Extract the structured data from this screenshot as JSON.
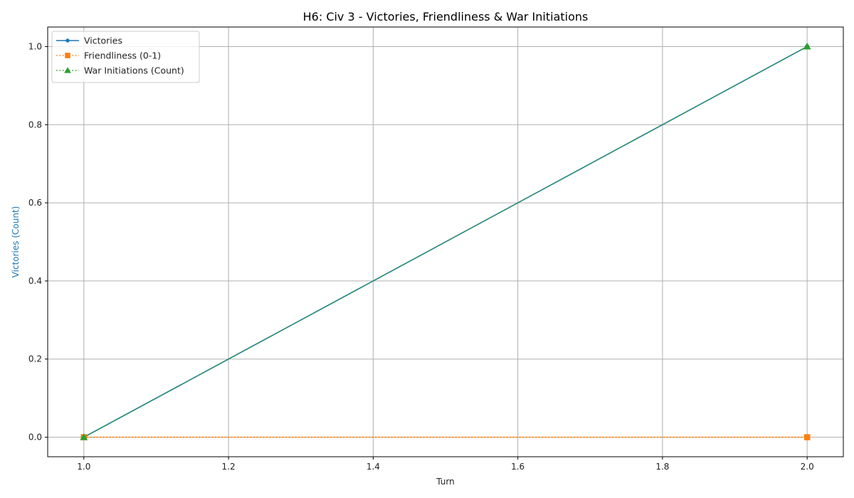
{
  "chart_data": {
    "type": "line",
    "title": "H6: Civ 3 - Victories, Friendliness & War Initiations",
    "xlabel": "Turn",
    "ylabel": "Victories (Count)",
    "xlim": [
      0.95,
      2.05
    ],
    "ylim": [
      -0.05,
      1.05
    ],
    "x_ticks": [
      "1.0",
      "1.2",
      "1.4",
      "1.6",
      "1.8",
      "2.0"
    ],
    "y_ticks": [
      "0.0",
      "0.2",
      "0.4",
      "0.6",
      "0.8",
      "1.0"
    ],
    "grid": true,
    "legend_position": "top-left",
    "ylabel_color": "#1f77b4",
    "series": [
      {
        "name": "Victories",
        "x": [
          1,
          2
        ],
        "values": [
          0,
          1
        ],
        "color": "#1f77b4",
        "line_style": "solid",
        "marker": "circle"
      },
      {
        "name": "Friendliness (0-1)",
        "x": [
          1,
          2
        ],
        "values": [
          0,
          0
        ],
        "color": "#ff7f0e",
        "line_style": "dotted",
        "marker": "square"
      },
      {
        "name": "War Initiations (Count)",
        "x": [
          1,
          2
        ],
        "values": [
          0,
          1
        ],
        "color": "#2ca02c",
        "line_style": "dotted",
        "marker": "triangle"
      }
    ]
  }
}
